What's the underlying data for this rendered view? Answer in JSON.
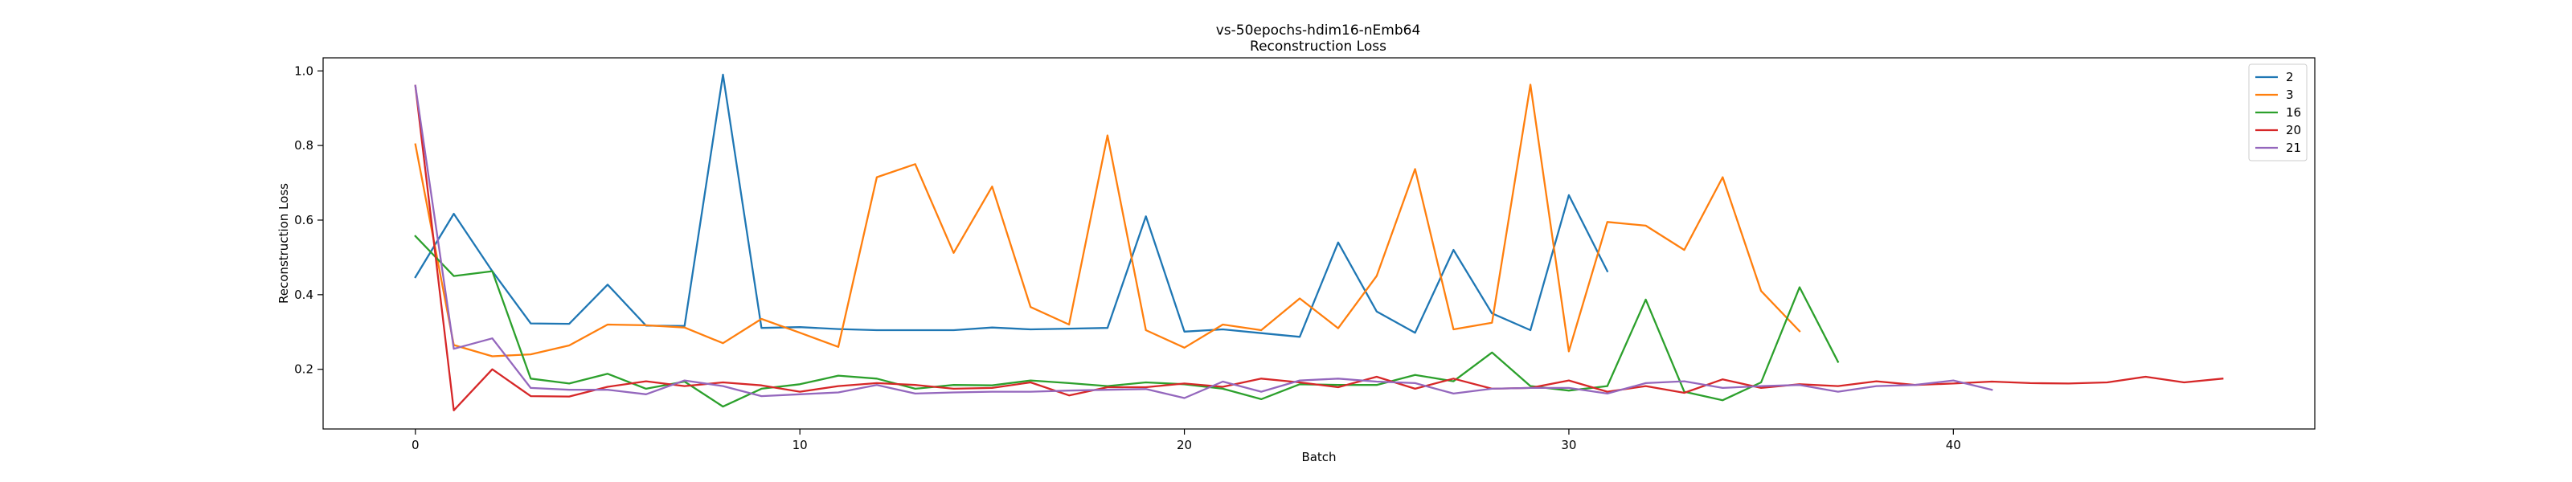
{
  "chart_data": {
    "type": "line",
    "title": "vs-50epochs-hdim16-nEmb64",
    "subtitle": "Reconstruction Loss",
    "xlabel": "Batch",
    "ylabel": "Reconstruction Loss",
    "xlim": [
      -2.4,
      49.4
    ],
    "ylim": [
      0.04,
      1.035
    ],
    "xticks": [
      0,
      10,
      20,
      30,
      40
    ],
    "yticks": [
      0.2,
      0.4,
      0.6,
      0.8,
      1.0
    ],
    "ytick_labels": [
      "0.2",
      "0.4",
      "0.6",
      "0.8",
      "1.0"
    ],
    "grid": false,
    "legend_position": "top-right",
    "series": [
      {
        "name": "2",
        "color": "#1f77b4",
        "values": [
          0.447,
          0.617,
          0.463,
          0.323,
          0.322,
          0.427,
          0.317,
          0.316,
          0.99,
          0.311,
          0.313,
          0.308,
          0.305,
          0.305,
          0.305,
          0.312,
          0.307,
          0.309,
          0.311,
          0.61,
          0.301,
          0.307,
          0.297,
          0.287,
          0.54,
          0.355,
          0.298,
          0.52,
          0.35,
          0.305,
          0.667,
          0.463
        ]
      },
      {
        "name": "3",
        "color": "#ff7f0e",
        "values": [
          0.803,
          0.265,
          0.235,
          0.24,
          0.264,
          0.32,
          0.318,
          0.312,
          0.27,
          0.335,
          0.298,
          0.26,
          0.715,
          0.75,
          0.512,
          0.69,
          0.367,
          0.32,
          0.827,
          0.305,
          0.258,
          0.32,
          0.305,
          0.39,
          0.31,
          0.45,
          0.737,
          0.307,
          0.325,
          0.963,
          0.248,
          0.595,
          0.585,
          0.52,
          0.715,
          0.41,
          0.302
        ]
      },
      {
        "name": "16",
        "color": "#2ca02c",
        "values": [
          0.557,
          0.45,
          0.463,
          0.175,
          0.162,
          0.188,
          0.148,
          0.167,
          0.1,
          0.148,
          0.16,
          0.183,
          0.175,
          0.148,
          0.158,
          0.157,
          0.17,
          0.163,
          0.155,
          0.165,
          0.16,
          0.148,
          0.12,
          0.16,
          0.158,
          0.158,
          0.185,
          0.168,
          0.245,
          0.155,
          0.143,
          0.155,
          0.387,
          0.14,
          0.117,
          0.165,
          0.42,
          0.22
        ]
      },
      {
        "name": "20",
        "color": "#d62728",
        "values": [
          0.96,
          0.09,
          0.2,
          0.128,
          0.127,
          0.153,
          0.168,
          0.155,
          0.165,
          0.157,
          0.14,
          0.155,
          0.163,
          0.158,
          0.148,
          0.15,
          0.165,
          0.13,
          0.152,
          0.152,
          0.162,
          0.153,
          0.175,
          0.165,
          0.152,
          0.18,
          0.148,
          0.175,
          0.148,
          0.15,
          0.17,
          0.14,
          0.155,
          0.137,
          0.173,
          0.15,
          0.16,
          0.155,
          0.168,
          0.158,
          0.162,
          0.167,
          0.163,
          0.162,
          0.165,
          0.18,
          0.165,
          0.175
        ]
      },
      {
        "name": "21",
        "color": "#9467bd",
        "values": [
          0.96,
          0.255,
          0.283,
          0.15,
          0.145,
          0.145,
          0.133,
          0.17,
          0.155,
          0.128,
          0.133,
          0.138,
          0.158,
          0.135,
          0.138,
          0.14,
          0.14,
          0.143,
          0.145,
          0.147,
          0.123,
          0.167,
          0.14,
          0.17,
          0.175,
          0.167,
          0.163,
          0.135,
          0.148,
          0.15,
          0.15,
          0.135,
          0.163,
          0.168,
          0.15,
          0.155,
          0.158,
          0.14,
          0.155,
          0.158,
          0.17,
          0.145
        ]
      }
    ]
  }
}
